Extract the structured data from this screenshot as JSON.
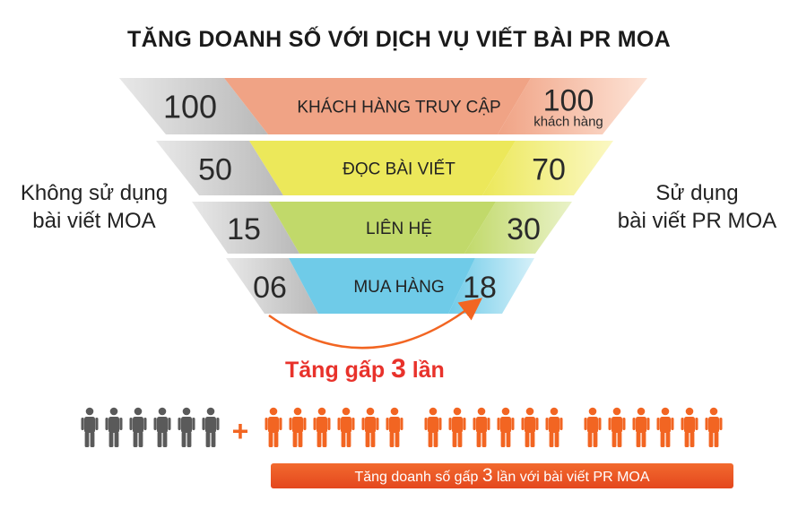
{
  "title": "TĂNG DOANH SỐ VỚI DỊCH VỤ VIẾT BÀI PR MOA",
  "left_group": {
    "line1": "Không sử dụng",
    "line2": "bài viết MOA"
  },
  "right_group": {
    "line1": "Sử dụng",
    "line2": "bài viết PR MOA"
  },
  "funnel": [
    {
      "label": "KHÁCH HÀNG TRUY CẬP",
      "without": "100",
      "with": "100",
      "with_note": "khách hàng",
      "color": "#f0a385"
    },
    {
      "label": "ĐỌC BÀI VIẾT",
      "without": "50",
      "with": "70",
      "color": "#ece85a"
    },
    {
      "label": "LIÊN HỆ",
      "without": "15",
      "with": "30",
      "color": "#c1d96a"
    },
    {
      "label": "MUA HÀNG",
      "without": "06",
      "with": "18",
      "color": "#6fcbe8"
    }
  ],
  "growth": {
    "prefix": "Tăng gấp",
    "factor": "3",
    "suffix": "lần"
  },
  "people": {
    "without_count": 6,
    "with_groups": [
      6,
      6,
      6
    ],
    "plus": "+",
    "gray": "#5a5a5a",
    "orange": "#f26522"
  },
  "banner": {
    "prefix": "Tăng doanh số gấp",
    "factor": "3",
    "suffix": "lần với bài viết PR MOA"
  },
  "colors": {
    "accent": "#e8322b",
    "arrow": "#f26522"
  }
}
